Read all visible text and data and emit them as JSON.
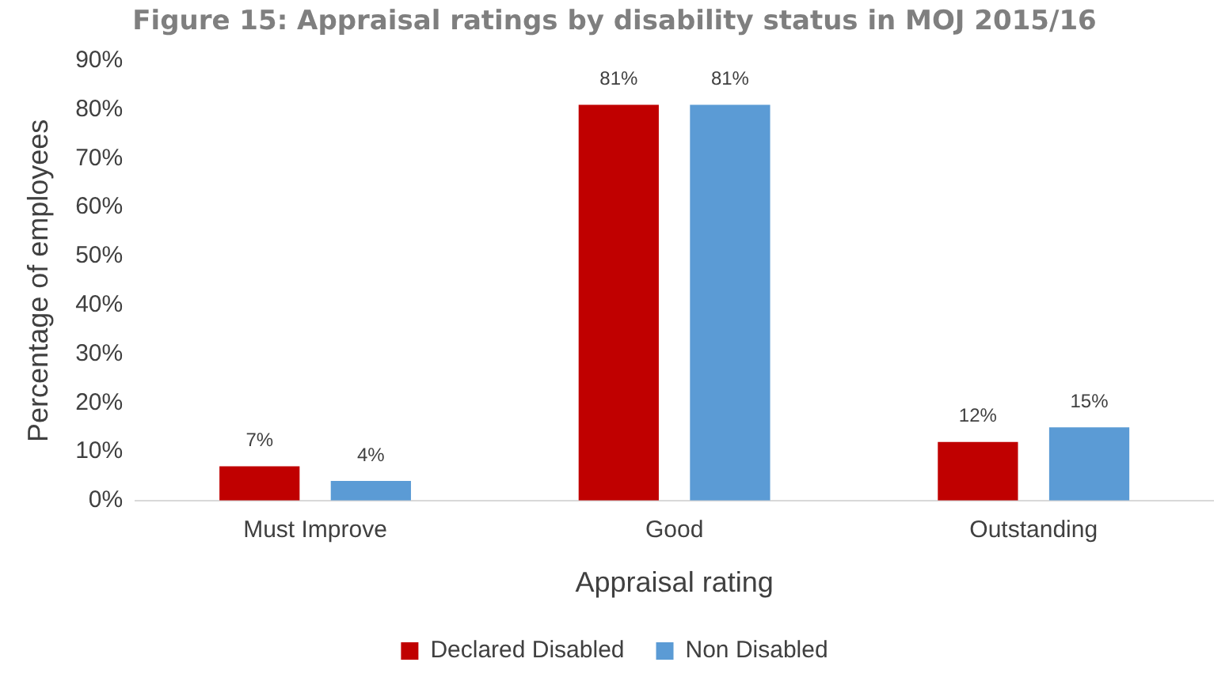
{
  "chart_data": {
    "type": "bar",
    "title": "Figure 15: Appraisal ratings by disability status in MOJ 2015/16",
    "xlabel": "Appraisal rating",
    "ylabel": "Percentage of employees",
    "categories": [
      "Must Improve",
      "Good",
      "Outstanding"
    ],
    "series": [
      {
        "name": "Declared Disabled",
        "color": "#c00000",
        "values": [
          7,
          81,
          12
        ],
        "value_labels": [
          "7%",
          "81%",
          "12%"
        ]
      },
      {
        "name": "Non Disabled",
        "color": "#5b9bd5",
        "values": [
          4,
          81,
          15
        ],
        "value_labels": [
          "4%",
          "81%",
          "15%"
        ]
      }
    ],
    "ylim": [
      0,
      90
    ],
    "yticks": [
      {
        "value": 0,
        "label": "0%"
      },
      {
        "value": 10,
        "label": "10%"
      },
      {
        "value": 20,
        "label": "20%"
      },
      {
        "value": 30,
        "label": "30%"
      },
      {
        "value": 40,
        "label": "40%"
      },
      {
        "value": 50,
        "label": "50%"
      },
      {
        "value": 60,
        "label": "60%"
      },
      {
        "value": 70,
        "label": "70%"
      },
      {
        "value": 80,
        "label": "80%"
      },
      {
        "value": 90,
        "label": "90%"
      }
    ],
    "grid": false,
    "legend": "bottom"
  }
}
